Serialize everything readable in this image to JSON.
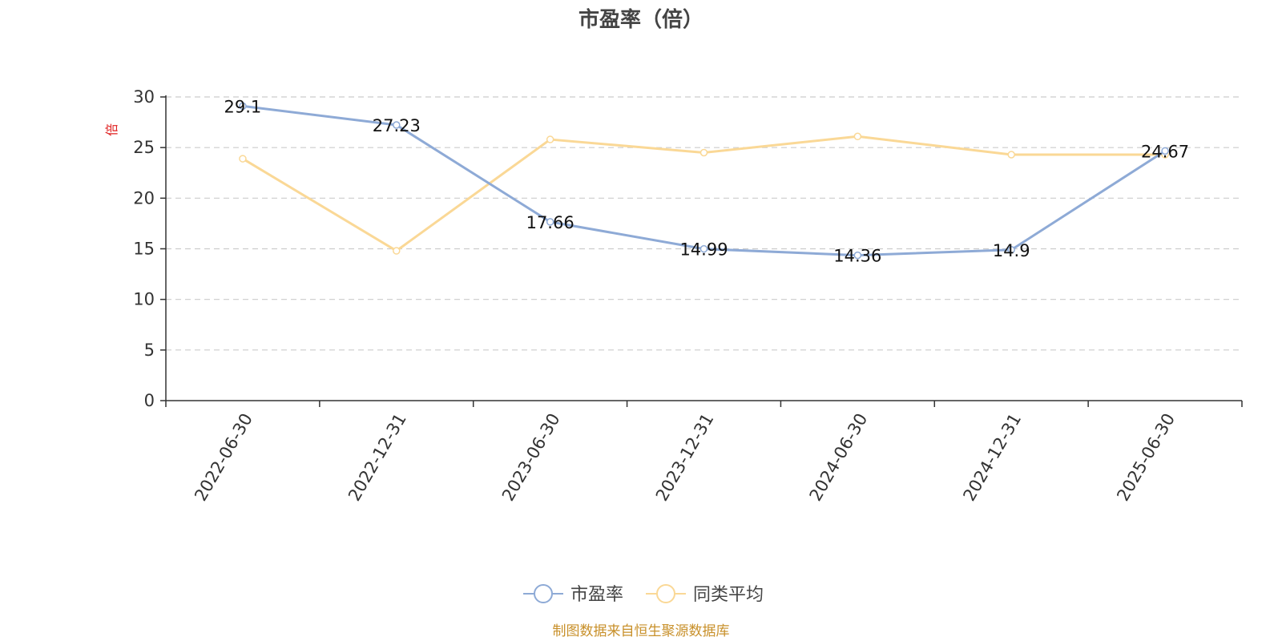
{
  "chart_data": {
    "type": "line",
    "title": "市盈率（倍）",
    "ylabel": "倍",
    "categories": [
      "2022-06-30",
      "2022-12-31",
      "2023-06-30",
      "2023-12-31",
      "2024-06-30",
      "2024-12-31",
      "2025-06-30"
    ],
    "ylim": [
      0,
      30
    ],
    "yticks": [
      0,
      5,
      10,
      15,
      20,
      25,
      30
    ],
    "grid": true,
    "legend_position": "bottom-center",
    "series": [
      {
        "name": "市盈率",
        "color": "#8eaad6",
        "values": [
          29.1,
          27.23,
          17.66,
          14.99,
          14.36,
          14.9,
          24.67
        ],
        "labels": [
          "29.1",
          "27.23",
          "17.66",
          "14.99",
          "14.36",
          "14.9",
          "24.67"
        ]
      },
      {
        "name": "同类平均",
        "color": "#fad896",
        "values": [
          23.9,
          14.8,
          25.8,
          24.5,
          26.1,
          24.3,
          24.3
        ]
      }
    ]
  },
  "source_note": "制图数据来自恒生聚源数据库",
  "colors": {
    "ylabel": "#e02020",
    "axis": "#333333",
    "grid": "#cccccc"
  }
}
